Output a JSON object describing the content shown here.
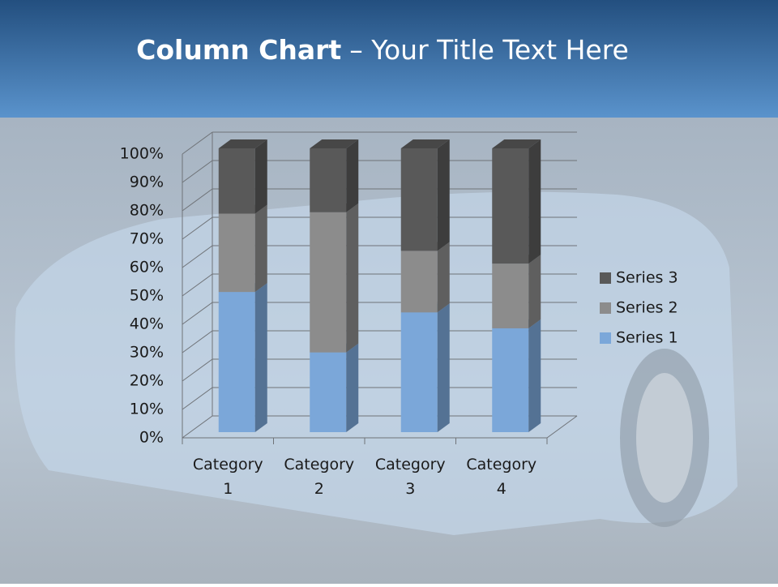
{
  "chart_data": {
    "type": "stacked-column-3d",
    "title": {
      "bold": "Column Chart",
      "regular": "– Your Title Text Here"
    },
    "categories": [
      "Category 1",
      "Category 2",
      "Category 3",
      "Category 4"
    ],
    "series": [
      {
        "name": "Series 1",
        "color": "#7ba7d9",
        "values": [
          49.4,
          28.1,
          42.2,
          36.6
        ]
      },
      {
        "name": "Series 2",
        "color": "#8c8c8c",
        "values": [
          27.6,
          49.4,
          21.7,
          22.8
        ]
      },
      {
        "name": "Series 3",
        "color": "#595959",
        "values": [
          23.0,
          22.5,
          36.1,
          40.6
        ]
      }
    ],
    "ylim": [
      0,
      100
    ],
    "yticks": [
      {
        "value": 0,
        "label": "0%"
      },
      {
        "value": 10,
        "label": "10%"
      },
      {
        "value": 20,
        "label": "20%"
      },
      {
        "value": 30,
        "label": "30%"
      },
      {
        "value": 40,
        "label": "40%"
      },
      {
        "value": 50,
        "label": "50%"
      },
      {
        "value": 60,
        "label": "60%"
      },
      {
        "value": 70,
        "label": "70%"
      },
      {
        "value": 80,
        "label": "80%"
      },
      {
        "value": 90,
        "label": "90%"
      },
      {
        "value": 100,
        "label": "100%"
      }
    ],
    "grid": true,
    "legend": "right"
  }
}
